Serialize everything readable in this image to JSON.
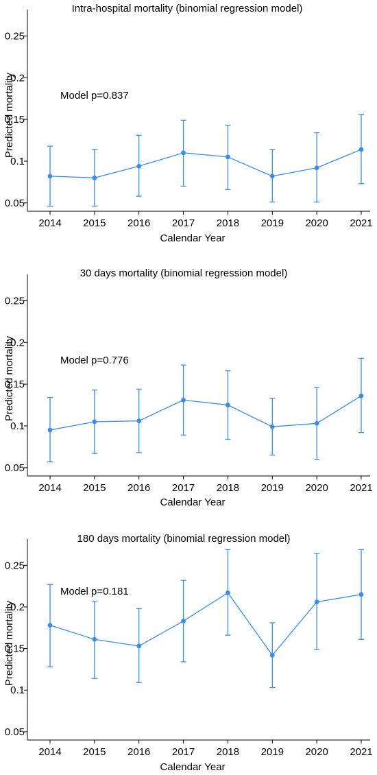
{
  "chart_data": [
    {
      "type": "line",
      "title": "Intra-hospital mortality (binomial regression model)",
      "xlabel": "Calendar Year",
      "ylabel": "Predicted mortality",
      "annotation": "Model p=0.837",
      "x": [
        2014,
        2015,
        2016,
        2017,
        2018,
        2019,
        2020,
        2021
      ],
      "x_tick_labels": [
        "2014",
        "2015",
        "2016",
        "2017",
        "2018",
        "2019",
        "2020",
        "2021"
      ],
      "y_ticks": [
        0.05,
        0.1,
        0.15,
        0.2,
        0.25
      ],
      "y_tick_labels": [
        "0.05",
        "0.1",
        "0.15",
        "0.2",
        "0.25"
      ],
      "ylim": [
        0.04,
        0.275
      ],
      "values": [
        0.082,
        0.08,
        0.094,
        0.11,
        0.105,
        0.082,
        0.092,
        0.114
      ],
      "lower": [
        0.046,
        0.046,
        0.058,
        0.07,
        0.066,
        0.051,
        0.051,
        0.073
      ],
      "upper": [
        0.118,
        0.114,
        0.131,
        0.149,
        0.143,
        0.114,
        0.134,
        0.156
      ],
      "grid": false,
      "color": "#3a8de8"
    },
    {
      "type": "line",
      "title": "30 days mortality (binomial regression model)",
      "xlabel": "Calendar Year",
      "ylabel": "Predicted mortality",
      "annotation": "Model p=0.776",
      "x": [
        2014,
        2015,
        2016,
        2017,
        2018,
        2019,
        2020,
        2021
      ],
      "x_tick_labels": [
        "2014",
        "2015",
        "2016",
        "2017",
        "2018",
        "2019",
        "2020",
        "2021"
      ],
      "y_ticks": [
        0.05,
        0.1,
        0.15,
        0.2,
        0.25
      ],
      "y_tick_labels": [
        "0.05",
        "0.1",
        "0.15",
        "0.2",
        "0.25"
      ],
      "ylim": [
        0.04,
        0.275
      ],
      "values": [
        0.095,
        0.105,
        0.106,
        0.131,
        0.125,
        0.099,
        0.103,
        0.136
      ],
      "lower": [
        0.057,
        0.067,
        0.068,
        0.089,
        0.084,
        0.065,
        0.06,
        0.092
      ],
      "upper": [
        0.134,
        0.143,
        0.144,
        0.173,
        0.166,
        0.133,
        0.146,
        0.181
      ],
      "grid": false,
      "color": "#3a8de8"
    },
    {
      "type": "line",
      "title": "180 days mortality (binomial regression model)",
      "xlabel": "Calendar Year",
      "ylabel": "Predicted mortality",
      "annotation": "Model p=0.181",
      "x": [
        2014,
        2015,
        2016,
        2017,
        2018,
        2019,
        2020,
        2021
      ],
      "x_tick_labels": [
        "2014",
        "2015",
        "2016",
        "2017",
        "2018",
        "2019",
        "2020",
        "2021"
      ],
      "y_ticks": [
        0.05,
        0.1,
        0.15,
        0.2,
        0.25
      ],
      "y_tick_labels": [
        "0.05",
        "0.1",
        "0.15",
        "0.2",
        "0.25"
      ],
      "ylim": [
        0.04,
        0.275
      ],
      "values": [
        0.178,
        0.161,
        0.153,
        0.183,
        0.217,
        0.142,
        0.206,
        0.215
      ],
      "lower": [
        0.128,
        0.114,
        0.109,
        0.134,
        0.166,
        0.103,
        0.149,
        0.161
      ],
      "upper": [
        0.227,
        0.207,
        0.198,
        0.232,
        0.269,
        0.181,
        0.264,
        0.269
      ],
      "grid": false,
      "color": "#3a8de8"
    }
  ]
}
